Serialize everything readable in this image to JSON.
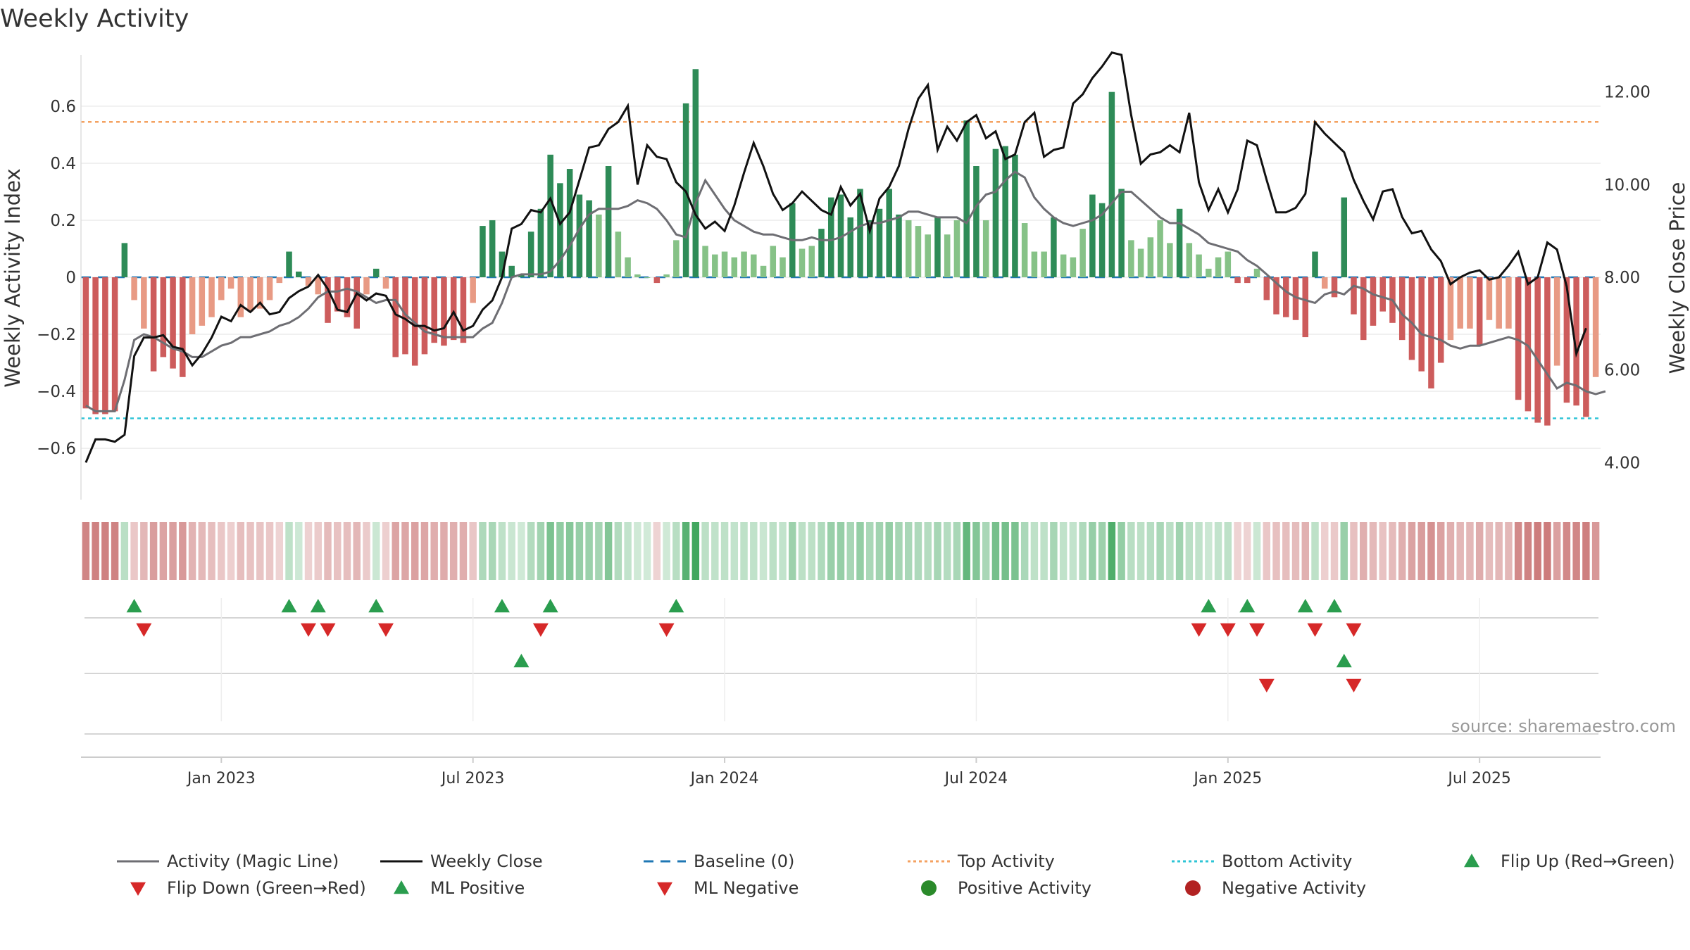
{
  "chart_data": {
    "type": "bar",
    "title": "Weekly Activity",
    "ylabel": "Weekly Activity Index",
    "y2label": "Weekly Close Price",
    "source": "source: sharemaestro.com",
    "ylim": [
      -0.78,
      0.78
    ],
    "y2lim": [
      3.2,
      12.8
    ],
    "y_ticks": [
      0.6,
      0.4,
      0.2,
      0,
      -0.2,
      -0.4,
      -0.6
    ],
    "y_tick_labels": [
      "0.6",
      "0.4",
      "0.2",
      "0",
      "−0.2",
      "−0.4",
      "−0.6"
    ],
    "y2_ticks": [
      12,
      10,
      8,
      6,
      4
    ],
    "y2_tick_labels": [
      "12.00",
      "10.00",
      "8.00",
      "6.00",
      "4.00"
    ],
    "top_activity": 0.545,
    "bottom_activity": -0.495,
    "x_week_range": [
      0,
      155
    ],
    "x_ticks": [
      {
        "week": 14,
        "label": "Jan 2023"
      },
      {
        "week": 40,
        "label": "Jul 2023"
      },
      {
        "week": 66,
        "label": "Jan 2024"
      },
      {
        "week": 92,
        "label": "Jul 2024"
      },
      {
        "week": 118,
        "label": "Jan 2025"
      },
      {
        "week": 144,
        "label": "Jul 2025"
      }
    ],
    "activity": [
      -0.46,
      -0.48,
      -0.48,
      -0.47,
      0.12,
      -0.08,
      -0.18,
      -0.33,
      -0.28,
      -0.32,
      -0.35,
      -0.2,
      -0.17,
      -0.14,
      -0.08,
      -0.04,
      -0.14,
      -0.12,
      -0.11,
      -0.08,
      -0.02,
      0.09,
      0.02,
      -0.03,
      -0.06,
      -0.16,
      -0.12,
      -0.14,
      -0.18,
      -0.06,
      0.03,
      -0.04,
      -0.28,
      -0.27,
      -0.31,
      -0.27,
      -0.23,
      -0.24,
      -0.22,
      -0.23,
      -0.09,
      0.18,
      0.2,
      0.09,
      0.04,
      0.01,
      0.16,
      0.24,
      0.43,
      0.33,
      0.38,
      0.29,
      0.27,
      0.22,
      0.39,
      0.16,
      0.07,
      0.01,
      0.0,
      -0.02,
      0.01,
      0.13,
      0.61,
      0.73,
      0.11,
      0.08,
      0.09,
      0.07,
      0.09,
      0.08,
      0.04,
      0.11,
      0.07,
      0.26,
      0.1,
      0.11,
      0.17,
      0.28,
      0.29,
      0.21,
      0.31,
      0.2,
      0.24,
      0.31,
      0.22,
      0.2,
      0.18,
      0.15,
      0.21,
      0.15,
      0.2,
      0.55,
      0.39,
      0.2,
      0.45,
      0.46,
      0.43,
      0.19,
      0.09,
      0.09,
      0.21,
      0.08,
      0.07,
      0.17,
      0.29,
      0.26,
      0.65,
      0.31,
      0.13,
      0.1,
      0.14,
      0.2,
      0.12,
      0.24,
      0.12,
      0.08,
      0.03,
      0.07,
      0.09,
      -0.02,
      -0.02,
      0.03,
      -0.08,
      -0.13,
      -0.14,
      -0.15,
      -0.21,
      0.09,
      -0.04,
      -0.07,
      0.28,
      -0.13,
      -0.22,
      -0.17,
      -0.12,
      -0.16,
      -0.22,
      -0.29,
      -0.33,
      -0.39,
      -0.3,
      -0.22,
      -0.18,
      -0.18,
      -0.24,
      -0.15,
      -0.18,
      -0.18,
      -0.43,
      -0.47,
      -0.51,
      -0.52,
      -0.31,
      -0.44,
      -0.45,
      -0.49,
      -0.35
    ],
    "magic_line": [
      -0.45,
      -0.47,
      -0.47,
      -0.47,
      -0.36,
      -0.22,
      -0.2,
      -0.21,
      -0.23,
      -0.25,
      -0.26,
      -0.28,
      -0.28,
      -0.26,
      -0.24,
      -0.23,
      -0.21,
      -0.21,
      -0.2,
      -0.19,
      -0.17,
      -0.16,
      -0.14,
      -0.11,
      -0.07,
      -0.05,
      -0.05,
      -0.04,
      -0.05,
      -0.07,
      -0.09,
      -0.08,
      -0.08,
      -0.13,
      -0.16,
      -0.19,
      -0.2,
      -0.21,
      -0.21,
      -0.21,
      -0.21,
      -0.18,
      -0.16,
      -0.09,
      0.0,
      0.01,
      0.01,
      0.01,
      0.02,
      0.06,
      0.11,
      0.17,
      0.22,
      0.24,
      0.24,
      0.24,
      0.25,
      0.27,
      0.26,
      0.24,
      0.2,
      0.15,
      0.14,
      0.26,
      0.34,
      0.29,
      0.24,
      0.2,
      0.18,
      0.16,
      0.15,
      0.15,
      0.14,
      0.13,
      0.13,
      0.14,
      0.13,
      0.13,
      0.14,
      0.16,
      0.18,
      0.19,
      0.19,
      0.2,
      0.21,
      0.23,
      0.23,
      0.22,
      0.21,
      0.21,
      0.21,
      0.19,
      0.25,
      0.29,
      0.3,
      0.34,
      0.37,
      0.35,
      0.28,
      0.24,
      0.21,
      0.19,
      0.18,
      0.19,
      0.2,
      0.22,
      0.26,
      0.3,
      0.3,
      0.27,
      0.24,
      0.21,
      0.19,
      0.19,
      0.17,
      0.15,
      0.12,
      0.11,
      0.1,
      0.09,
      0.06,
      0.04,
      0.01,
      -0.02,
      -0.05,
      -0.07,
      -0.08,
      -0.09,
      -0.06,
      -0.05,
      -0.06,
      -0.03,
      -0.04,
      -0.06,
      -0.07,
      -0.08,
      -0.13,
      -0.16,
      -0.2,
      -0.21,
      -0.22,
      -0.24,
      -0.25,
      -0.24,
      -0.24,
      -0.23,
      -0.22,
      -0.21,
      -0.22,
      -0.24,
      -0.29,
      -0.34,
      -0.39,
      -0.37,
      -0.38,
      -0.4,
      -0.41,
      -0.4
    ],
    "weekly_close": [
      4.0,
      4.5,
      4.5,
      4.45,
      4.6,
      6.3,
      6.7,
      6.7,
      6.75,
      6.5,
      6.45,
      6.1,
      6.35,
      6.7,
      7.15,
      7.05,
      7.4,
      7.25,
      7.45,
      7.2,
      7.25,
      7.55,
      7.7,
      7.8,
      8.05,
      7.75,
      7.3,
      7.25,
      7.65,
      7.5,
      7.65,
      7.6,
      7.2,
      7.1,
      6.95,
      6.95,
      6.85,
      6.9,
      7.25,
      6.85,
      6.95,
      7.3,
      7.5,
      8.0,
      9.05,
      9.15,
      9.45,
      9.4,
      9.7,
      9.15,
      9.4,
      10.1,
      10.8,
      10.85,
      11.2,
      11.35,
      11.7,
      10.0,
      10.85,
      10.6,
      10.55,
      10.05,
      9.85,
      9.35,
      9.05,
      9.2,
      9.0,
      9.55,
      10.25,
      10.9,
      10.4,
      9.8,
      9.45,
      9.6,
      9.85,
      9.65,
      9.45,
      9.35,
      9.95,
      9.55,
      9.8,
      9.0,
      9.7,
      9.95,
      10.4,
      11.2,
      11.85,
      12.15,
      10.75,
      11.25,
      10.95,
      11.35,
      11.5,
      11.0,
      11.15,
      10.55,
      10.65,
      11.35,
      11.55,
      10.6,
      10.75,
      10.8,
      11.75,
      11.95,
      12.3,
      12.55,
      12.85,
      12.8,
      11.5,
      10.45,
      10.65,
      10.7,
      10.85,
      10.7,
      11.55,
      10.05,
      9.45,
      9.9,
      9.4,
      9.9,
      10.95,
      10.85,
      10.1,
      9.4,
      9.4,
      9.5,
      9.8,
      11.35,
      11.1,
      10.9,
      10.7,
      10.1,
      9.65,
      9.25,
      9.85,
      9.9,
      9.3,
      8.95,
      9.0,
      8.6,
      8.35,
      7.85,
      8.0,
      8.1,
      8.15,
      7.95,
      8.0,
      8.25,
      8.55,
      7.85,
      8.0,
      8.75,
      8.6,
      7.8,
      6.35,
      6.9
    ],
    "ml_flip_up_row1": [
      5,
      21,
      24,
      30,
      43,
      48,
      61,
      116,
      120,
      126,
      129
    ],
    "ml_flip_down_row1": [
      6,
      23,
      25,
      31,
      47,
      60,
      115,
      118,
      121,
      127,
      131
    ],
    "ml_flip_up_row2": [
      45,
      130
    ],
    "ml_flip_down_row2": [
      122,
      131
    ],
    "legend": [
      {
        "label": "Activity (Magic Line)",
        "kind": "line",
        "color": "#6e6e73",
        "dash": ""
      },
      {
        "label": "Weekly Close",
        "kind": "line",
        "color": "#111111",
        "dash": ""
      },
      {
        "label": "Baseline (0)",
        "kind": "line",
        "color": "#1f77b4",
        "dash": "14,10"
      },
      {
        "label": "Top Activity",
        "kind": "line",
        "color": "#f4a261",
        "dash": "4,4"
      },
      {
        "label": "Bottom Activity",
        "kind": "line",
        "color": "#2ec4d6",
        "dash": "4,4"
      },
      {
        "label": "Flip Up (Red→Green)",
        "kind": "tri-up",
        "color": "#2a9d4e"
      },
      {
        "label": "Flip Down (Green→Red)",
        "kind": "tri-down",
        "color": "#d62828"
      },
      {
        "label": "ML Positive",
        "kind": "tri-up",
        "color": "#2a9d4e"
      },
      {
        "label": "ML Negative",
        "kind": "tri-down",
        "color": "#d62828"
      },
      {
        "label": "Positive Activity",
        "kind": "dot",
        "color": "#2a8a2a"
      },
      {
        "label": "Negative Activity",
        "kind": "dot",
        "color": "#b22222"
      }
    ],
    "colors": {
      "pos_strong": "#2e8b57",
      "pos_light": "#86c287",
      "neg_strong": "#cd5c5c",
      "neg_light": "#e89a84",
      "magic_line": "#6e6e73",
      "close": "#111111",
      "baseline": "#1f77b4",
      "top": "#f4a261",
      "bottom": "#2ec4d6",
      "up_marker": "#2a9d4e",
      "down_marker": "#d62828"
    }
  }
}
